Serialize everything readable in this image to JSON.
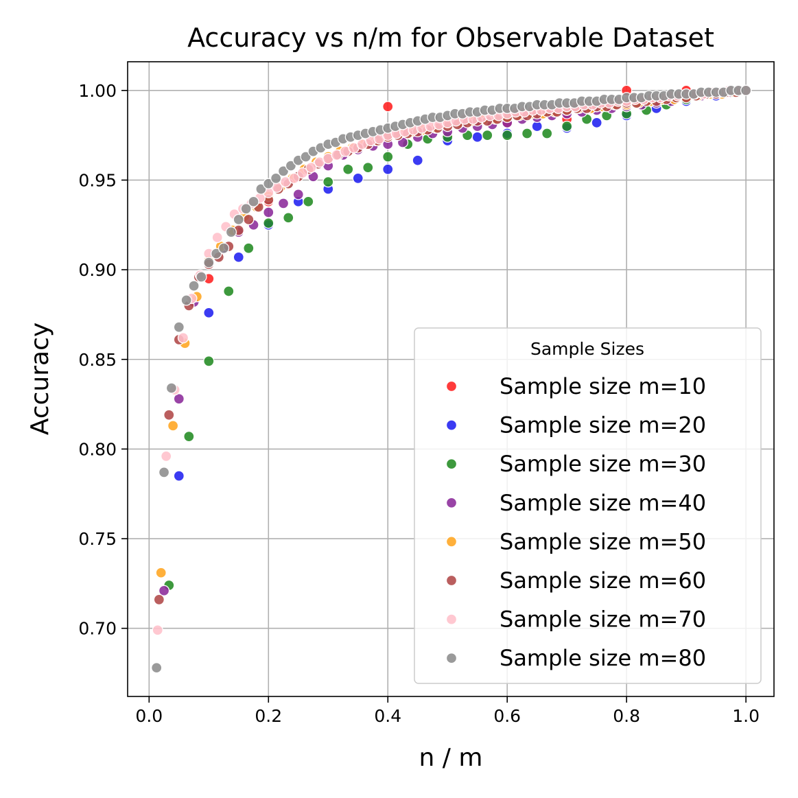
{
  "chart_data": {
    "type": "scatter",
    "title": "Accuracy vs n/m for Observable Dataset",
    "xlabel": "n / m",
    "ylabel": "Accuracy",
    "xlim": [
      -0.036,
      1.047
    ],
    "ylim": [
      0.662,
      1.016
    ],
    "x_ticks": [
      0.0,
      0.2,
      0.4,
      0.6,
      0.8,
      1.0
    ],
    "x_tick_labels": [
      "0.0",
      "0.2",
      "0.4",
      "0.6",
      "0.8",
      "1.0"
    ],
    "y_ticks": [
      0.7,
      0.75,
      0.8,
      0.85,
      0.9,
      0.95,
      1.0
    ],
    "y_tick_labels": [
      "0.70",
      "0.75",
      "0.80",
      "0.85",
      "0.90",
      "0.95",
      "1.00"
    ],
    "grid": true,
    "legend_title": "Sample Sizes",
    "legend_position": "lower-right",
    "series": [
      {
        "name": "Sample size m=10",
        "color": "#ff2020",
        "x": [
          0.1,
          0.2,
          0.3,
          0.4,
          0.5,
          0.6,
          0.7,
          0.8,
          0.9,
          1.0
        ],
        "y": [
          0.895,
          0.938,
          0.962,
          0.991,
          0.975,
          0.982,
          0.984,
          1.0,
          1.0,
          1.0
        ]
      },
      {
        "name": "Sample size m=20",
        "color": "#2020f0",
        "x": [
          0.05,
          0.1,
          0.15,
          0.2,
          0.25,
          0.3,
          0.35,
          0.4,
          0.45,
          0.5,
          0.55,
          0.6,
          0.65,
          0.7,
          0.75,
          0.8,
          0.85,
          0.9,
          0.95,
          1.0
        ],
        "y": [
          0.785,
          0.876,
          0.907,
          0.925,
          0.938,
          0.945,
          0.951,
          0.956,
          0.961,
          0.972,
          0.974,
          0.976,
          0.98,
          0.979,
          0.982,
          0.986,
          0.99,
          0.994,
          0.997,
          1.0
        ]
      },
      {
        "name": "Sample size m=30",
        "color": "#228b22",
        "x": [
          0.0333,
          0.0667,
          0.1,
          0.1333,
          0.1667,
          0.2,
          0.2333,
          0.2667,
          0.3,
          0.3333,
          0.3667,
          0.4,
          0.4333,
          0.4667,
          0.5,
          0.5333,
          0.5667,
          0.6,
          0.6333,
          0.6667,
          0.7,
          0.7333,
          0.7667,
          0.8,
          0.8333,
          0.8667,
          0.9,
          0.9333,
          0.9667,
          1.0
        ],
        "y": [
          0.724,
          0.807,
          0.849,
          0.888,
          0.912,
          0.926,
          0.929,
          0.938,
          0.949,
          0.956,
          0.957,
          0.963,
          0.97,
          0.973,
          0.974,
          0.975,
          0.975,
          0.975,
          0.976,
          0.976,
          0.98,
          0.984,
          0.986,
          0.987,
          0.989,
          0.992,
          0.995,
          0.998,
          0.999,
          1.0
        ]
      },
      {
        "name": "Sample size m=40",
        "color": "#8b2a9a",
        "x": [
          0.025,
          0.05,
          0.075,
          0.1,
          0.125,
          0.15,
          0.175,
          0.2,
          0.225,
          0.25,
          0.275,
          0.3,
          0.325,
          0.35,
          0.375,
          0.4,
          0.425,
          0.45,
          0.475,
          0.5,
          0.525,
          0.55,
          0.575,
          0.6,
          0.625,
          0.65,
          0.675,
          0.7,
          0.725,
          0.75,
          0.775,
          0.8,
          0.825,
          0.85,
          0.875,
          0.9,
          0.925,
          0.95,
          0.975,
          1.0
        ],
        "y": [
          0.721,
          0.828,
          0.882,
          0.904,
          0.912,
          0.921,
          0.925,
          0.932,
          0.937,
          0.942,
          0.952,
          0.958,
          0.964,
          0.967,
          0.969,
          0.97,
          0.971,
          0.974,
          0.976,
          0.977,
          0.979,
          0.98,
          0.981,
          0.982,
          0.984,
          0.985,
          0.986,
          0.987,
          0.988,
          0.989,
          0.99,
          0.991,
          0.992,
          0.993,
          0.994,
          0.996,
          0.997,
          0.998,
          0.999,
          1.0
        ]
      },
      {
        "name": "Sample size m=50",
        "color": "#ffa520",
        "x": [
          0.02,
          0.04,
          0.06,
          0.08,
          0.1,
          0.12,
          0.14,
          0.16,
          0.18,
          0.2,
          0.22,
          0.24,
          0.26,
          0.28,
          0.3,
          0.32,
          0.34,
          0.36,
          0.38,
          0.4,
          0.42,
          0.44,
          0.46,
          0.48,
          0.5,
          0.52,
          0.54,
          0.56,
          0.58,
          0.6,
          0.62,
          0.64,
          0.66,
          0.68,
          0.7,
          0.72,
          0.74,
          0.76,
          0.78,
          0.8,
          0.82,
          0.84,
          0.86,
          0.88,
          0.9,
          0.92,
          0.94,
          0.96,
          0.98,
          1.0
        ],
        "y": [
          0.731,
          0.813,
          0.859,
          0.885,
          0.905,
          0.913,
          0.922,
          0.93,
          0.935,
          0.941,
          0.946,
          0.951,
          0.956,
          0.96,
          0.963,
          0.966,
          0.968,
          0.97,
          0.972,
          0.974,
          0.976,
          0.977,
          0.978,
          0.979,
          0.981,
          0.982,
          0.983,
          0.984,
          0.984,
          0.985,
          0.986,
          0.987,
          0.987,
          0.988,
          0.989,
          0.99,
          0.99,
          0.991,
          0.992,
          0.992,
          0.993,
          0.994,
          0.995,
          0.995,
          0.996,
          0.997,
          0.998,
          0.998,
          0.999,
          1.0
        ]
      },
      {
        "name": "Sample size m=60",
        "color": "#b04848",
        "x": [
          0.0167,
          0.0333,
          0.05,
          0.0667,
          0.0833,
          0.1,
          0.1167,
          0.1333,
          0.15,
          0.1667,
          0.1833,
          0.2,
          0.2167,
          0.2333,
          0.25,
          0.2667,
          0.2833,
          0.3,
          0.3167,
          0.3333,
          0.35,
          0.3667,
          0.3833,
          0.4,
          0.4167,
          0.4333,
          0.45,
          0.4667,
          0.4833,
          0.5,
          0.5167,
          0.5333,
          0.55,
          0.5667,
          0.5833,
          0.6,
          0.6167,
          0.6333,
          0.65,
          0.6667,
          0.6833,
          0.7,
          0.7167,
          0.7333,
          0.75,
          0.7667,
          0.7833,
          0.8,
          0.8167,
          0.8333,
          0.85,
          0.8667,
          0.8833,
          0.9,
          0.9167,
          0.9333,
          0.95,
          0.9667,
          0.9833,
          1.0
        ],
        "y": [
          0.716,
          0.819,
          0.861,
          0.88,
          0.896,
          0.903,
          0.907,
          0.913,
          0.922,
          0.928,
          0.935,
          0.939,
          0.945,
          0.948,
          0.952,
          0.956,
          0.959,
          0.962,
          0.964,
          0.966,
          0.968,
          0.97,
          0.972,
          0.974,
          0.975,
          0.976,
          0.977,
          0.978,
          0.979,
          0.98,
          0.981,
          0.982,
          0.983,
          0.983,
          0.984,
          0.985,
          0.986,
          0.986,
          0.987,
          0.988,
          0.988,
          0.989,
          0.99,
          0.99,
          0.991,
          0.991,
          0.992,
          0.993,
          0.993,
          0.994,
          0.994,
          0.995,
          0.996,
          0.996,
          0.997,
          0.998,
          0.998,
          0.999,
          0.999,
          1.0
        ]
      },
      {
        "name": "Sample size m=70",
        "color": "#ffc0cb",
        "x": [
          0.0143,
          0.0286,
          0.0429,
          0.0571,
          0.0714,
          0.0857,
          0.1,
          0.1143,
          0.1286,
          0.1429,
          0.1571,
          0.1714,
          0.1857,
          0.2,
          0.2143,
          0.2286,
          0.2429,
          0.2571,
          0.2714,
          0.2857,
          0.3,
          0.3143,
          0.3286,
          0.3429,
          0.3571,
          0.3714,
          0.3857,
          0.4,
          0.4143,
          0.4286,
          0.4429,
          0.4571,
          0.4714,
          0.4857,
          0.5,
          0.5143,
          0.5286,
          0.5429,
          0.5571,
          0.5714,
          0.5857,
          0.6,
          0.6143,
          0.6286,
          0.6429,
          0.6571,
          0.6714,
          0.6857,
          0.7,
          0.7143,
          0.7286,
          0.7429,
          0.7571,
          0.7714,
          0.7857,
          0.8,
          0.8143,
          0.8286,
          0.8429,
          0.8571,
          0.8714,
          0.8857,
          0.9,
          0.9143,
          0.9286,
          0.9429,
          0.9571,
          0.9714,
          0.9857,
          1.0
        ],
        "y": [
          0.699,
          0.796,
          0.833,
          0.862,
          0.884,
          0.897,
          0.909,
          0.918,
          0.924,
          0.931,
          0.934,
          0.937,
          0.94,
          0.943,
          0.946,
          0.949,
          0.951,
          0.954,
          0.957,
          0.96,
          0.962,
          0.964,
          0.966,
          0.968,
          0.97,
          0.972,
          0.973,
          0.975,
          0.976,
          0.977,
          0.978,
          0.979,
          0.98,
          0.981,
          0.982,
          0.983,
          0.984,
          0.984,
          0.985,
          0.986,
          0.986,
          0.987,
          0.988,
          0.988,
          0.989,
          0.989,
          0.99,
          0.99,
          0.991,
          0.991,
          0.992,
          0.992,
          0.993,
          0.993,
          0.994,
          0.994,
          0.995,
          0.995,
          0.996,
          0.996,
          0.997,
          0.997,
          0.998,
          0.998,
          0.998,
          0.999,
          0.999,
          1.0,
          1.0,
          1.0
        ]
      },
      {
        "name": "Sample size m=80",
        "color": "#8c8c8c",
        "x": [
          0.0125,
          0.025,
          0.0375,
          0.05,
          0.0625,
          0.075,
          0.0875,
          0.1,
          0.1125,
          0.125,
          0.1375,
          0.15,
          0.1625,
          0.175,
          0.1875,
          0.2,
          0.2125,
          0.225,
          0.2375,
          0.25,
          0.2625,
          0.275,
          0.2875,
          0.3,
          0.3125,
          0.325,
          0.3375,
          0.35,
          0.3625,
          0.375,
          0.3875,
          0.4,
          0.4125,
          0.425,
          0.4375,
          0.45,
          0.4625,
          0.475,
          0.4875,
          0.5,
          0.5125,
          0.525,
          0.5375,
          0.55,
          0.5625,
          0.575,
          0.5875,
          0.6,
          0.6125,
          0.625,
          0.6375,
          0.65,
          0.6625,
          0.675,
          0.6875,
          0.7,
          0.7125,
          0.725,
          0.7375,
          0.75,
          0.7625,
          0.775,
          0.7875,
          0.8,
          0.8125,
          0.825,
          0.8375,
          0.85,
          0.8625,
          0.875,
          0.8875,
          0.9,
          0.9125,
          0.925,
          0.9375,
          0.95,
          0.9625,
          0.975,
          0.9875,
          1.0
        ],
        "y": [
          0.678,
          0.787,
          0.834,
          0.868,
          0.883,
          0.891,
          0.896,
          0.904,
          0.909,
          0.912,
          0.921,
          0.928,
          0.934,
          0.938,
          0.945,
          0.948,
          0.951,
          0.955,
          0.958,
          0.961,
          0.963,
          0.966,
          0.968,
          0.97,
          0.971,
          0.973,
          0.974,
          0.975,
          0.976,
          0.977,
          0.978,
          0.979,
          0.98,
          0.981,
          0.982,
          0.983,
          0.984,
          0.985,
          0.985,
          0.986,
          0.987,
          0.987,
          0.988,
          0.988,
          0.989,
          0.989,
          0.99,
          0.99,
          0.99,
          0.991,
          0.991,
          0.992,
          0.992,
          0.992,
          0.993,
          0.993,
          0.993,
          0.994,
          0.994,
          0.994,
          0.995,
          0.995,
          0.995,
          0.996,
          0.996,
          0.996,
          0.997,
          0.997,
          0.997,
          0.998,
          0.998,
          0.998,
          0.998,
          0.999,
          0.999,
          0.999,
          0.999,
          1.0,
          1.0,
          1.0
        ]
      }
    ]
  }
}
